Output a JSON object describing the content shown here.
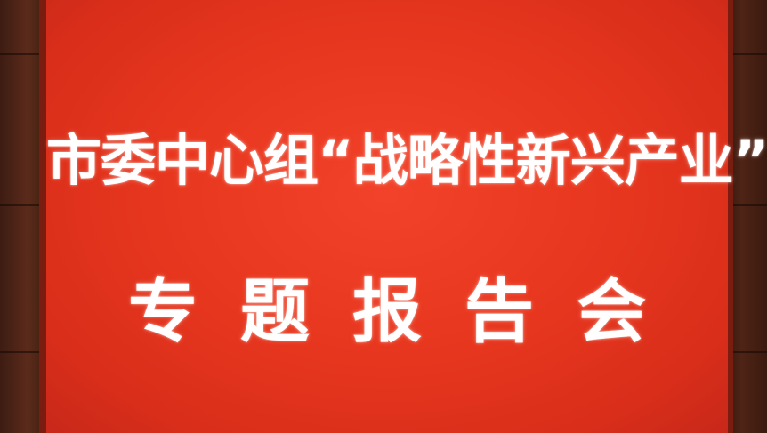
{
  "banner": {
    "line1": "市委中心组“战略性新兴产业”",
    "line2": "专题报告会"
  },
  "colors": {
    "screen_red": "#e8371f",
    "text": "#ffffff",
    "wood": "#5a2a1b"
  }
}
